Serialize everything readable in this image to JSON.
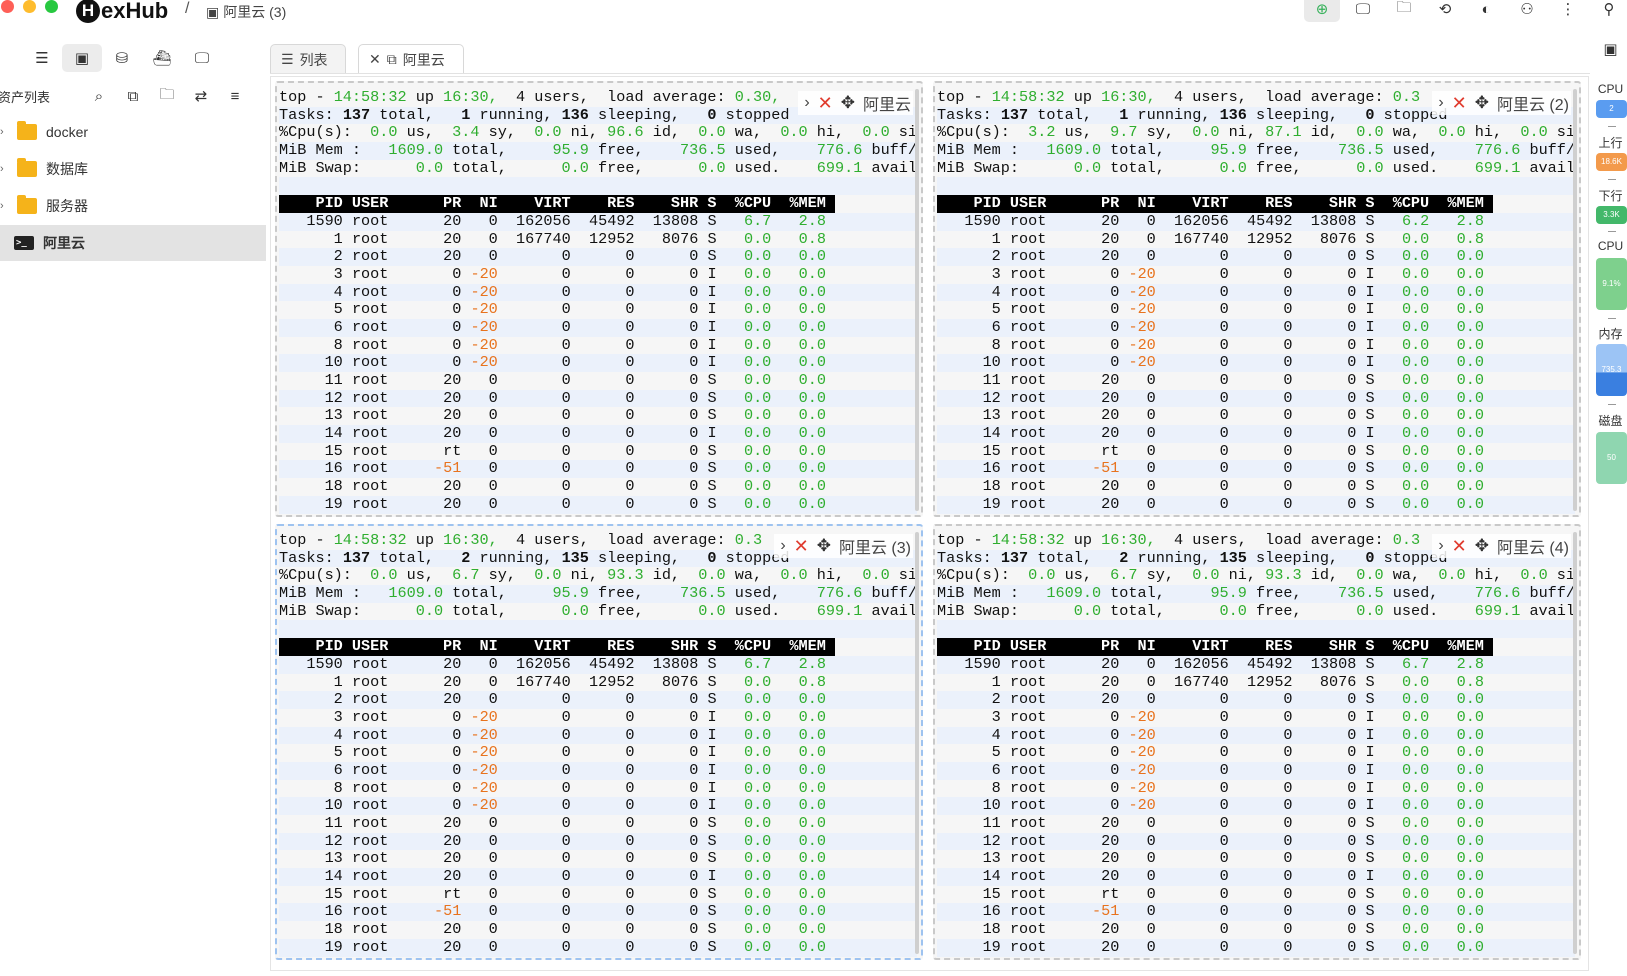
{
  "app": {
    "name": "exHub",
    "logo_letter": "H",
    "breadcrumb_sep": "/",
    "breadcrumb": "阿里云 (3)"
  },
  "sidebar": {
    "assets_label": "资产列表",
    "tree": [
      {
        "label": "docker",
        "type": "folder"
      },
      {
        "label": "数据库",
        "type": "folder"
      },
      {
        "label": "服务器",
        "type": "folder"
      },
      {
        "label": "阿里云",
        "type": "terminal",
        "selected": true
      }
    ]
  },
  "tabs": [
    {
      "label": "列表",
      "icon": "list-icon"
    },
    {
      "label": "阿里云",
      "icon": "window-icon",
      "closable": true
    }
  ],
  "panes": [
    {
      "name": "阿里云",
      "tasks_running": "1",
      "tasks_sleeping": "136",
      "cpu_us": "0.0",
      "cpu_sy": "3.4",
      "cpu_id": "96.6",
      "p1590_cpu": "6.7",
      "load": "0.30,"
    },
    {
      "name": "阿里云 (2)",
      "tasks_running": "1",
      "tasks_sleeping": "136",
      "cpu_us": "3.2",
      "cpu_sy": "9.7",
      "cpu_id": "87.1",
      "p1590_cpu": "6.2",
      "load": "0.3"
    },
    {
      "name": "阿里云 (3)",
      "tasks_running": "2",
      "tasks_sleeping": "135",
      "cpu_us": "0.0",
      "cpu_sy": "6.7",
      "cpu_id": "93.3",
      "p1590_cpu": "6.7",
      "load": "0.3"
    },
    {
      "name": "阿里云 (4)",
      "tasks_running": "2",
      "tasks_sleeping": "135",
      "cpu_us": "0.0",
      "cpu_sy": "6.7",
      "cpu_id": "93.3",
      "p1590_cpu": "6.7",
      "load": "0.3"
    }
  ],
  "top_common": {
    "time": "14:58:32",
    "uptime": "16:30,",
    "users": "4 users,",
    "tasks_total": "137",
    "mem_total": "1609.0",
    "mem_free": "95.9",
    "mem_used": "736.5",
    "mem_buff": "776.6",
    "swap_total": "0.0",
    "swap_free": "0.0",
    "swap_used": "0.0",
    "swap_avail": "699.1",
    "process_rows": [
      [
        "1590",
        "root",
        "20",
        "0",
        "162056",
        "45492",
        "13808",
        "S",
        "6.7",
        "2.8"
      ],
      [
        "1",
        "root",
        "20",
        "0",
        "167740",
        "12952",
        "8076",
        "S",
        "0.0",
        "0.8"
      ],
      [
        "2",
        "root",
        "20",
        "0",
        "0",
        "0",
        "0",
        "S",
        "0.0",
        "0.0"
      ],
      [
        "3",
        "root",
        "0",
        "-20",
        "0",
        "0",
        "0",
        "I",
        "0.0",
        "0.0"
      ],
      [
        "4",
        "root",
        "0",
        "-20",
        "0",
        "0",
        "0",
        "I",
        "0.0",
        "0.0"
      ],
      [
        "5",
        "root",
        "0",
        "-20",
        "0",
        "0",
        "0",
        "I",
        "0.0",
        "0.0"
      ],
      [
        "6",
        "root",
        "0",
        "-20",
        "0",
        "0",
        "0",
        "I",
        "0.0",
        "0.0"
      ],
      [
        "8",
        "root",
        "0",
        "-20",
        "0",
        "0",
        "0",
        "I",
        "0.0",
        "0.0"
      ],
      [
        "10",
        "root",
        "0",
        "-20",
        "0",
        "0",
        "0",
        "I",
        "0.0",
        "0.0"
      ],
      [
        "11",
        "root",
        "20",
        "0",
        "0",
        "0",
        "0",
        "S",
        "0.0",
        "0.0"
      ],
      [
        "12",
        "root",
        "20",
        "0",
        "0",
        "0",
        "0",
        "S",
        "0.0",
        "0.0"
      ],
      [
        "13",
        "root",
        "20",
        "0",
        "0",
        "0",
        "0",
        "S",
        "0.0",
        "0.0"
      ],
      [
        "14",
        "root",
        "20",
        "0",
        "0",
        "0",
        "0",
        "I",
        "0.0",
        "0.0"
      ],
      [
        "15",
        "root",
        "rt",
        "0",
        "0",
        "0",
        "0",
        "S",
        "0.0",
        "0.0"
      ],
      [
        "16",
        "root",
        "-51",
        "0",
        "0",
        "0",
        "0",
        "S",
        "0.0",
        "0.0"
      ],
      [
        "18",
        "root",
        "20",
        "0",
        "0",
        "0",
        "0",
        "S",
        "0.0",
        "0.0"
      ],
      [
        "19",
        "root",
        "20",
        "0",
        "0",
        "0",
        "0",
        "S",
        "0.0",
        "0.0"
      ]
    ]
  },
  "rail": {
    "cpu_label": "CPU",
    "cpu_value": "2",
    "up_label": "上行",
    "up_value": "18.6K",
    "down_label": "下行",
    "down_value": "3.3K",
    "cpu2_label": "CPU",
    "cpu2_value": "9.1%",
    "mem_label": "内存",
    "mem_value": "735.3",
    "disk_label": "磁盘",
    "disk_value": "50",
    "colors": {
      "blue": "#5a9cf0",
      "orange": "#f39a4b",
      "green": "#43b86a",
      "lightgreen": "#7ed08d",
      "mem": "#3a7fe0",
      "disk": "#8fd6b0"
    }
  }
}
